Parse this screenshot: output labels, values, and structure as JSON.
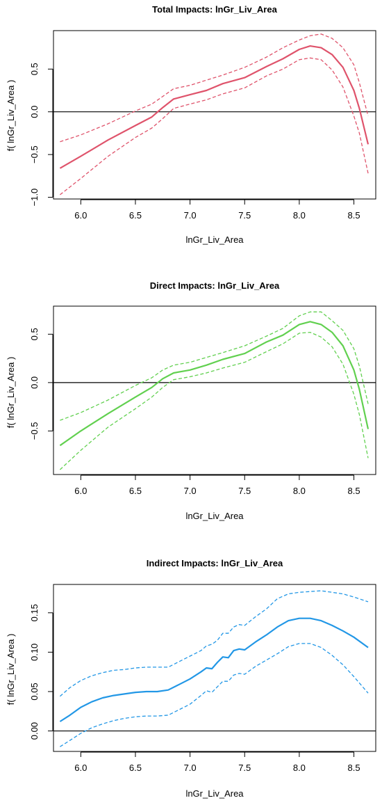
{
  "chart_data": [
    {
      "type": "line",
      "title": "Total Impacts:  lnGr_Liv_Area",
      "xlabel": "lnGr_Liv_Area",
      "ylabel": "f( lnGr_Liv_Area )",
      "xlim": [
        5.75,
        8.7
      ],
      "ylim": [
        -1.02,
        0.95
      ],
      "xticks": [
        6.0,
        6.5,
        7.0,
        7.5,
        8.0,
        8.5
      ],
      "xtick_labels": [
        "6.0",
        "6.5",
        "7.0",
        "7.5",
        "8.0",
        "8.5"
      ],
      "yticks": [
        -1.0,
        -0.5,
        0.0,
        0.5
      ],
      "ytick_labels": [
        "−1.0",
        "−0.5",
        "0.0",
        "0.5"
      ],
      "hline": 0,
      "color": "#DF536B",
      "x": [
        5.81,
        6.0,
        6.25,
        6.5,
        6.65,
        6.75,
        6.85,
        7.0,
        7.15,
        7.3,
        7.5,
        7.7,
        7.85,
        8.0,
        8.1,
        8.2,
        8.3,
        8.4,
        8.5,
        8.55,
        8.63
      ],
      "series": [
        {
          "style": "solid",
          "values": [
            -0.66,
            -0.52,
            -0.33,
            -0.16,
            -0.06,
            0.05,
            0.15,
            0.2,
            0.25,
            0.33,
            0.4,
            0.53,
            0.62,
            0.73,
            0.77,
            0.75,
            0.67,
            0.52,
            0.25,
            0.04,
            -0.38
          ]
        },
        {
          "style": "dashed",
          "values": [
            -0.35,
            -0.27,
            -0.14,
            0.01,
            0.09,
            0.18,
            0.27,
            0.31,
            0.37,
            0.43,
            0.52,
            0.64,
            0.75,
            0.84,
            0.89,
            0.91,
            0.86,
            0.75,
            0.55,
            0.34,
            -0.05
          ]
        },
        {
          "style": "dashed",
          "values": [
            -0.97,
            -0.78,
            -0.52,
            -0.3,
            -0.19,
            -0.08,
            0.04,
            0.09,
            0.14,
            0.21,
            0.28,
            0.42,
            0.5,
            0.61,
            0.63,
            0.61,
            0.49,
            0.29,
            -0.05,
            -0.25,
            -0.72
          ]
        }
      ]
    },
    {
      "type": "line",
      "title": "Direct Impacts:  lnGr_Liv_Area",
      "xlabel": "lnGr_Liv_Area",
      "ylabel": "f( lnGr_Liv_Area )",
      "xlim": [
        5.75,
        8.7
      ],
      "ylim": [
        -0.95,
        0.79
      ],
      "xticks": [
        6.0,
        6.5,
        7.0,
        7.5,
        8.0,
        8.5
      ],
      "xtick_labels": [
        "6.0",
        "6.5",
        "7.0",
        "7.5",
        "8.0",
        "8.5"
      ],
      "yticks": [
        -0.5,
        0.0,
        0.5
      ],
      "ytick_labels": [
        "−0.5",
        "0.0",
        "0.5"
      ],
      "hline": 0,
      "color": "#61D04F",
      "x": [
        5.81,
        6.0,
        6.25,
        6.5,
        6.65,
        6.75,
        6.85,
        7.0,
        7.15,
        7.3,
        7.5,
        7.7,
        7.85,
        8.0,
        8.1,
        8.2,
        8.3,
        8.4,
        8.5,
        8.55,
        8.63
      ],
      "series": [
        {
          "style": "solid",
          "values": [
            -0.65,
            -0.5,
            -0.32,
            -0.15,
            -0.05,
            0.04,
            0.1,
            0.13,
            0.18,
            0.24,
            0.3,
            0.42,
            0.49,
            0.6,
            0.63,
            0.6,
            0.52,
            0.38,
            0.13,
            -0.07,
            -0.48
          ]
        },
        {
          "style": "dashed",
          "values": [
            -0.39,
            -0.31,
            -0.18,
            -0.03,
            0.05,
            0.13,
            0.18,
            0.21,
            0.26,
            0.31,
            0.38,
            0.48,
            0.56,
            0.69,
            0.73,
            0.73,
            0.64,
            0.54,
            0.35,
            0.17,
            -0.22
          ]
        },
        {
          "style": "dashed",
          "values": [
            -0.9,
            -0.7,
            -0.46,
            -0.27,
            -0.15,
            -0.05,
            0.03,
            0.06,
            0.1,
            0.15,
            0.21,
            0.32,
            0.4,
            0.51,
            0.52,
            0.47,
            0.37,
            0.19,
            -0.12,
            -0.33,
            -0.78
          ]
        }
      ]
    },
    {
      "type": "line",
      "title": "Indirect Impacts:  lnGr_Liv_Area",
      "xlabel": "lnGr_Liv_Area",
      "ylabel": "f( lnGr_Liv_Area )",
      "xlim": [
        5.75,
        8.7
      ],
      "ylim": [
        -0.026,
        0.186
      ],
      "xticks": [
        6.0,
        6.5,
        7.0,
        7.5,
        8.0,
        8.5
      ],
      "xtick_labels": [
        "6.0",
        "6.5",
        "7.0",
        "7.5",
        "8.0",
        "8.5"
      ],
      "yticks": [
        0.0,
        0.05,
        0.1,
        0.15
      ],
      "ytick_labels": [
        "0.00",
        "0.05",
        "0.10",
        "0.15"
      ],
      "hline": 0,
      "color": "#2297E6",
      "x": [
        5.81,
        5.9,
        6.0,
        6.1,
        6.2,
        6.3,
        6.4,
        6.5,
        6.6,
        6.7,
        6.8,
        6.9,
        7.0,
        7.1,
        7.15,
        7.2,
        7.25,
        7.3,
        7.35,
        7.4,
        7.45,
        7.5,
        7.6,
        7.7,
        7.8,
        7.9,
        8.0,
        8.1,
        8.2,
        8.3,
        8.4,
        8.5,
        8.63
      ],
      "series": [
        {
          "style": "solid",
          "values": [
            0.012,
            0.02,
            0.03,
            0.037,
            0.042,
            0.045,
            0.047,
            0.049,
            0.05,
            0.05,
            0.052,
            0.059,
            0.066,
            0.075,
            0.08,
            0.079,
            0.087,
            0.094,
            0.093,
            0.102,
            0.104,
            0.103,
            0.113,
            0.122,
            0.132,
            0.14,
            0.143,
            0.143,
            0.14,
            0.134,
            0.127,
            0.119,
            0.106
          ]
        },
        {
          "style": "dashed",
          "values": [
            0.044,
            0.055,
            0.064,
            0.07,
            0.074,
            0.077,
            0.078,
            0.08,
            0.081,
            0.081,
            0.081,
            0.088,
            0.095,
            0.102,
            0.108,
            0.11,
            0.115,
            0.124,
            0.124,
            0.132,
            0.135,
            0.134,
            0.145,
            0.155,
            0.168,
            0.174,
            0.176,
            0.177,
            0.178,
            0.176,
            0.174,
            0.17,
            0.164
          ]
        },
        {
          "style": "dashed",
          "values": [
            -0.02,
            -0.012,
            -0.003,
            0.004,
            0.009,
            0.013,
            0.016,
            0.018,
            0.019,
            0.019,
            0.02,
            0.027,
            0.034,
            0.045,
            0.051,
            0.049,
            0.056,
            0.063,
            0.063,
            0.071,
            0.073,
            0.072,
            0.082,
            0.09,
            0.098,
            0.107,
            0.111,
            0.111,
            0.106,
            0.096,
            0.084,
            0.069,
            0.048
          ]
        }
      ]
    }
  ]
}
